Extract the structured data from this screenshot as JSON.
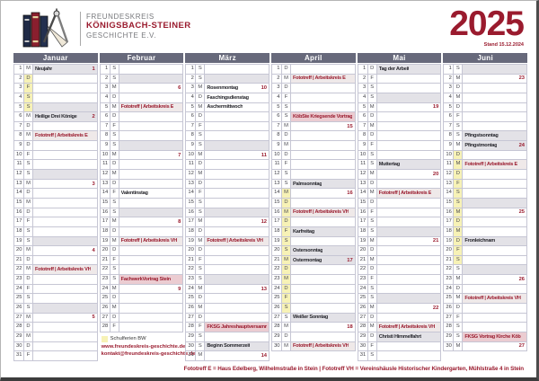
{
  "header": {
    "org_line1": "FREUNDESKREIS",
    "org_line2": "KÖNIGSBACH-STEINER",
    "org_line3": "GESCHICHTE E.V.",
    "year": "2025",
    "stand": "Stand 15.12.2024"
  },
  "legend": {
    "school_holidays_label": "Schulferien BW",
    "website": "www.freundeskreis-geschichte.de",
    "email": "kontakt@freundeskreis-geschichte.de"
  },
  "footer_note": "Fototreff E = Haus Edelberg, Wilhelmstraße in Stein  |  Fototreff VH = Vereinshäusle Historischer Kindergarten, Mühlstraße 4 in Stein",
  "colors": {
    "maroon": "#9a1b2e",
    "slate": "#67697b",
    "grid": "#c6c6d4",
    "gray_row": "#e3e2e7",
    "foto_row": "#efe9e9",
    "pink_row": "#ebccd1",
    "ferien_yellow": "#f7f2b6"
  },
  "months": [
    {
      "name": "Januar",
      "days": [
        {
          "d": 1,
          "w": "M",
          "t": "Neujahr",
          "n": "1",
          "s": "g"
        },
        {
          "d": 2,
          "w": "D",
          "y": 1
        },
        {
          "d": 3,
          "w": "F",
          "y": 1
        },
        {
          "d": 4,
          "w": "S",
          "y": 1
        },
        {
          "d": 5,
          "w": "S",
          "s": "g",
          "y": 1
        },
        {
          "d": 6,
          "w": "M",
          "t": "Heilige Drei Könige",
          "n": "2",
          "s": "g"
        },
        {
          "d": 7,
          "w": "D"
        },
        {
          "d": 8,
          "w": "M",
          "t": "Fototreff | Arbeitskreis E",
          "r": 1,
          "s": "f"
        },
        {
          "d": 9,
          "w": "D"
        },
        {
          "d": 10,
          "w": "F"
        },
        {
          "d": 11,
          "w": "S"
        },
        {
          "d": 12,
          "w": "S",
          "s": "g"
        },
        {
          "d": 13,
          "w": "M",
          "n": "3"
        },
        {
          "d": 14,
          "w": "D"
        },
        {
          "d": 15,
          "w": "M"
        },
        {
          "d": 16,
          "w": "D"
        },
        {
          "d": 17,
          "w": "F"
        },
        {
          "d": 18,
          "w": "S"
        },
        {
          "d": 19,
          "w": "S",
          "s": "g"
        },
        {
          "d": 20,
          "w": "M",
          "n": "4"
        },
        {
          "d": 21,
          "w": "D"
        },
        {
          "d": 22,
          "w": "M",
          "t": "Fototreff | Arbeitskreis VH",
          "r": 1,
          "s": "f"
        },
        {
          "d": 23,
          "w": "D"
        },
        {
          "d": 24,
          "w": "F"
        },
        {
          "d": 25,
          "w": "S"
        },
        {
          "d": 26,
          "w": "S",
          "s": "g"
        },
        {
          "d": 27,
          "w": "M",
          "n": "5"
        },
        {
          "d": 28,
          "w": "D"
        },
        {
          "d": 29,
          "w": "M"
        },
        {
          "d": 30,
          "w": "D"
        },
        {
          "d": 31,
          "w": "F"
        }
      ]
    },
    {
      "name": "Februar",
      "legend": true,
      "days": [
        {
          "d": 1,
          "w": "S"
        },
        {
          "d": 2,
          "w": "S",
          "s": "g"
        },
        {
          "d": 3,
          "w": "M",
          "n": "6"
        },
        {
          "d": 4,
          "w": "D"
        },
        {
          "d": 5,
          "w": "M",
          "t": "Fototreff | Arbeitskreis E",
          "r": 1,
          "s": "f"
        },
        {
          "d": 6,
          "w": "D"
        },
        {
          "d": 7,
          "w": "F"
        },
        {
          "d": 8,
          "w": "S"
        },
        {
          "d": 9,
          "w": "S",
          "s": "g"
        },
        {
          "d": 10,
          "w": "M",
          "n": "7"
        },
        {
          "d": 11,
          "w": "D"
        },
        {
          "d": 12,
          "w": "M"
        },
        {
          "d": 13,
          "w": "D"
        },
        {
          "d": 14,
          "w": "F",
          "t": "Valentinstag"
        },
        {
          "d": 15,
          "w": "S"
        },
        {
          "d": 16,
          "w": "S",
          "s": "g"
        },
        {
          "d": 17,
          "w": "M",
          "n": "8"
        },
        {
          "d": 18,
          "w": "D"
        },
        {
          "d": 19,
          "w": "M",
          "t": "Fototreff | Arbeitskreis VH",
          "r": 1,
          "s": "f"
        },
        {
          "d": 20,
          "w": "D"
        },
        {
          "d": 21,
          "w": "F"
        },
        {
          "d": 22,
          "w": "S"
        },
        {
          "d": 23,
          "w": "S",
          "t": "FachwerkVortrag Stein",
          "r": 1,
          "s": "p"
        },
        {
          "d": 24,
          "w": "M",
          "n": "9"
        },
        {
          "d": 25,
          "w": "D"
        },
        {
          "d": 26,
          "w": "M"
        },
        {
          "d": 27,
          "w": "D"
        },
        {
          "d": 28,
          "w": "F"
        }
      ]
    },
    {
      "name": "März",
      "days": [
        {
          "d": 1,
          "w": "S"
        },
        {
          "d": 2,
          "w": "S",
          "s": "g"
        },
        {
          "d": 3,
          "w": "M",
          "t": "Rosenmontag",
          "n": "10"
        },
        {
          "d": 4,
          "w": "D",
          "t": "Faschingsdienstag"
        },
        {
          "d": 5,
          "w": "M",
          "t": "Aschermittwoch"
        },
        {
          "d": 6,
          "w": "D"
        },
        {
          "d": 7,
          "w": "F"
        },
        {
          "d": 8,
          "w": "S"
        },
        {
          "d": 9,
          "w": "S",
          "s": "g"
        },
        {
          "d": 10,
          "w": "M",
          "n": "11"
        },
        {
          "d": 11,
          "w": "D"
        },
        {
          "d": 12,
          "w": "M"
        },
        {
          "d": 13,
          "w": "D"
        },
        {
          "d": 14,
          "w": "F"
        },
        {
          "d": 15,
          "w": "S"
        },
        {
          "d": 16,
          "w": "S",
          "s": "g"
        },
        {
          "d": 17,
          "w": "M",
          "n": "12"
        },
        {
          "d": 18,
          "w": "D"
        },
        {
          "d": 19,
          "w": "M",
          "t": "Fototreff | Arbeitskreis VH",
          "r": 1,
          "s": "f"
        },
        {
          "d": 20,
          "w": "D"
        },
        {
          "d": 21,
          "w": "F"
        },
        {
          "d": 22,
          "w": "S"
        },
        {
          "d": 23,
          "w": "S",
          "s": "g"
        },
        {
          "d": 24,
          "w": "M",
          "n": "13"
        },
        {
          "d": 25,
          "w": "D"
        },
        {
          "d": 26,
          "w": "M"
        },
        {
          "d": 27,
          "w": "D"
        },
        {
          "d": 28,
          "w": "F",
          "t": "FKSG Jahreshauptversamml.",
          "r": 1,
          "s": "p"
        },
        {
          "d": 29,
          "w": "S"
        },
        {
          "d": 30,
          "w": "S",
          "t": "Beginn Sommerzeit",
          "s": "g"
        },
        {
          "d": 31,
          "w": "M",
          "n": "14"
        }
      ]
    },
    {
      "name": "April",
      "days": [
        {
          "d": 1,
          "w": "D"
        },
        {
          "d": 2,
          "w": "M",
          "t": "Fototreff | Arbeitskreis E",
          "r": 1,
          "s": "f"
        },
        {
          "d": 3,
          "w": "D"
        },
        {
          "d": 4,
          "w": "F"
        },
        {
          "d": 5,
          "w": "S"
        },
        {
          "d": 6,
          "w": "S",
          "t": "KöbSte Kriegsende Vortrag",
          "r": 1,
          "s": "p"
        },
        {
          "d": 7,
          "w": "M",
          "n": "15"
        },
        {
          "d": 8,
          "w": "D"
        },
        {
          "d": 9,
          "w": "M"
        },
        {
          "d": 10,
          "w": "D"
        },
        {
          "d": 11,
          "w": "F"
        },
        {
          "d": 12,
          "w": "S"
        },
        {
          "d": 13,
          "w": "S",
          "t": "Palmsonntag",
          "s": "g"
        },
        {
          "d": 14,
          "w": "M",
          "n": "16",
          "y": 1
        },
        {
          "d": 15,
          "w": "D",
          "y": 1
        },
        {
          "d": 16,
          "w": "M",
          "t": "Fototreff | Arbeitskreis VH",
          "r": 1,
          "s": "f",
          "y": 1
        },
        {
          "d": 17,
          "w": "D",
          "y": 1
        },
        {
          "d": 18,
          "w": "F",
          "t": "Karfreitag",
          "s": "g",
          "y": 1
        },
        {
          "d": 19,
          "w": "S",
          "y": 1
        },
        {
          "d": 20,
          "w": "S",
          "t": "Ostersonntag",
          "s": "g",
          "y": 1
        },
        {
          "d": 21,
          "w": "M",
          "t": "Ostermontag",
          "n": "17",
          "s": "g",
          "y": 1
        },
        {
          "d": 22,
          "w": "D",
          "y": 1
        },
        {
          "d": 23,
          "w": "M",
          "y": 1
        },
        {
          "d": 24,
          "w": "D",
          "y": 1
        },
        {
          "d": 25,
          "w": "F",
          "y": 1
        },
        {
          "d": 26,
          "w": "S",
          "y": 1
        },
        {
          "d": 27,
          "w": "S",
          "t": "Weißer Sonntag",
          "s": "g"
        },
        {
          "d": 28,
          "w": "M",
          "n": "18"
        },
        {
          "d": 29,
          "w": "D"
        },
        {
          "d": 30,
          "w": "M",
          "t": "Fototreff | Arbeitskreis VH",
          "r": 1,
          "s": "f"
        }
      ]
    },
    {
      "name": "Mai",
      "days": [
        {
          "d": 1,
          "w": "D",
          "t": "Tag der Arbeit",
          "s": "g"
        },
        {
          "d": 2,
          "w": "F"
        },
        {
          "d": 3,
          "w": "S"
        },
        {
          "d": 4,
          "w": "S",
          "s": "g"
        },
        {
          "d": 5,
          "w": "M",
          "n": "19"
        },
        {
          "d": 6,
          "w": "D"
        },
        {
          "d": 7,
          "w": "M"
        },
        {
          "d": 8,
          "w": "D"
        },
        {
          "d": 9,
          "w": "F"
        },
        {
          "d": 10,
          "w": "S"
        },
        {
          "d": 11,
          "w": "S",
          "t": "Muttertag",
          "s": "g"
        },
        {
          "d": 12,
          "w": "M",
          "n": "20"
        },
        {
          "d": 13,
          "w": "D"
        },
        {
          "d": 14,
          "w": "M",
          "t": "Fototreff | Arbeitskreis E",
          "r": 1,
          "s": "f"
        },
        {
          "d": 15,
          "w": "D"
        },
        {
          "d": 16,
          "w": "F"
        },
        {
          "d": 17,
          "w": "S"
        },
        {
          "d": 18,
          "w": "S",
          "s": "g"
        },
        {
          "d": 19,
          "w": "M",
          "n": "21"
        },
        {
          "d": 20,
          "w": "D"
        },
        {
          "d": 21,
          "w": "M"
        },
        {
          "d": 22,
          "w": "D"
        },
        {
          "d": 23,
          "w": "F"
        },
        {
          "d": 24,
          "w": "S"
        },
        {
          "d": 25,
          "w": "S",
          "s": "g"
        },
        {
          "d": 26,
          "w": "M",
          "n": "22"
        },
        {
          "d": 27,
          "w": "D"
        },
        {
          "d": 28,
          "w": "M",
          "t": "Fototreff | Arbeitskreis VH",
          "r": 1,
          "s": "f"
        },
        {
          "d": 29,
          "w": "D",
          "t": "Christi Himmelfahrt",
          "s": "g"
        },
        {
          "d": 30,
          "w": "F"
        },
        {
          "d": 31,
          "w": "S"
        }
      ]
    },
    {
      "name": "Juni",
      "days": [
        {
          "d": 1,
          "w": "S",
          "s": "g"
        },
        {
          "d": 2,
          "w": "M",
          "n": "23"
        },
        {
          "d": 3,
          "w": "D"
        },
        {
          "d": 4,
          "w": "M"
        },
        {
          "d": 5,
          "w": "D"
        },
        {
          "d": 6,
          "w": "F"
        },
        {
          "d": 7,
          "w": "S"
        },
        {
          "d": 8,
          "w": "S",
          "t": "Pfingstsonntag",
          "s": "g"
        },
        {
          "d": 9,
          "w": "M",
          "t": "Pfingstmontag",
          "n": "24",
          "s": "g"
        },
        {
          "d": 10,
          "w": "D",
          "y": 1
        },
        {
          "d": 11,
          "w": "M",
          "t": "Fototreff | Arbeitskreis E",
          "r": 1,
          "s": "f",
          "y": 1
        },
        {
          "d": 12,
          "w": "D",
          "y": 1
        },
        {
          "d": 13,
          "w": "F",
          "y": 1
        },
        {
          "d": 14,
          "w": "S",
          "y": 1
        },
        {
          "d": 15,
          "w": "S",
          "s": "g",
          "y": 1
        },
        {
          "d": 16,
          "w": "M",
          "n": "25",
          "y": 1
        },
        {
          "d": 17,
          "w": "D",
          "y": 1
        },
        {
          "d": 18,
          "w": "M",
          "y": 1
        },
        {
          "d": 19,
          "w": "D",
          "t": "Fronleichnam",
          "s": "g",
          "y": 1
        },
        {
          "d": 20,
          "w": "F",
          "y": 1
        },
        {
          "d": 21,
          "w": "S",
          "y": 1
        },
        {
          "d": 22,
          "w": "S",
          "s": "g"
        },
        {
          "d": 23,
          "w": "M",
          "n": "26"
        },
        {
          "d": 24,
          "w": "D"
        },
        {
          "d": 25,
          "w": "M",
          "t": "Fototreff | Arbeitskreis VH",
          "r": 1,
          "s": "f"
        },
        {
          "d": 26,
          "w": "D"
        },
        {
          "d": 27,
          "w": "F"
        },
        {
          "d": 28,
          "w": "S"
        },
        {
          "d": 29,
          "w": "S",
          "t": "FKSG Vortrag Kirche Köb",
          "r": 1,
          "s": "p"
        },
        {
          "d": 30,
          "w": "M",
          "n": "27"
        }
      ]
    }
  ]
}
